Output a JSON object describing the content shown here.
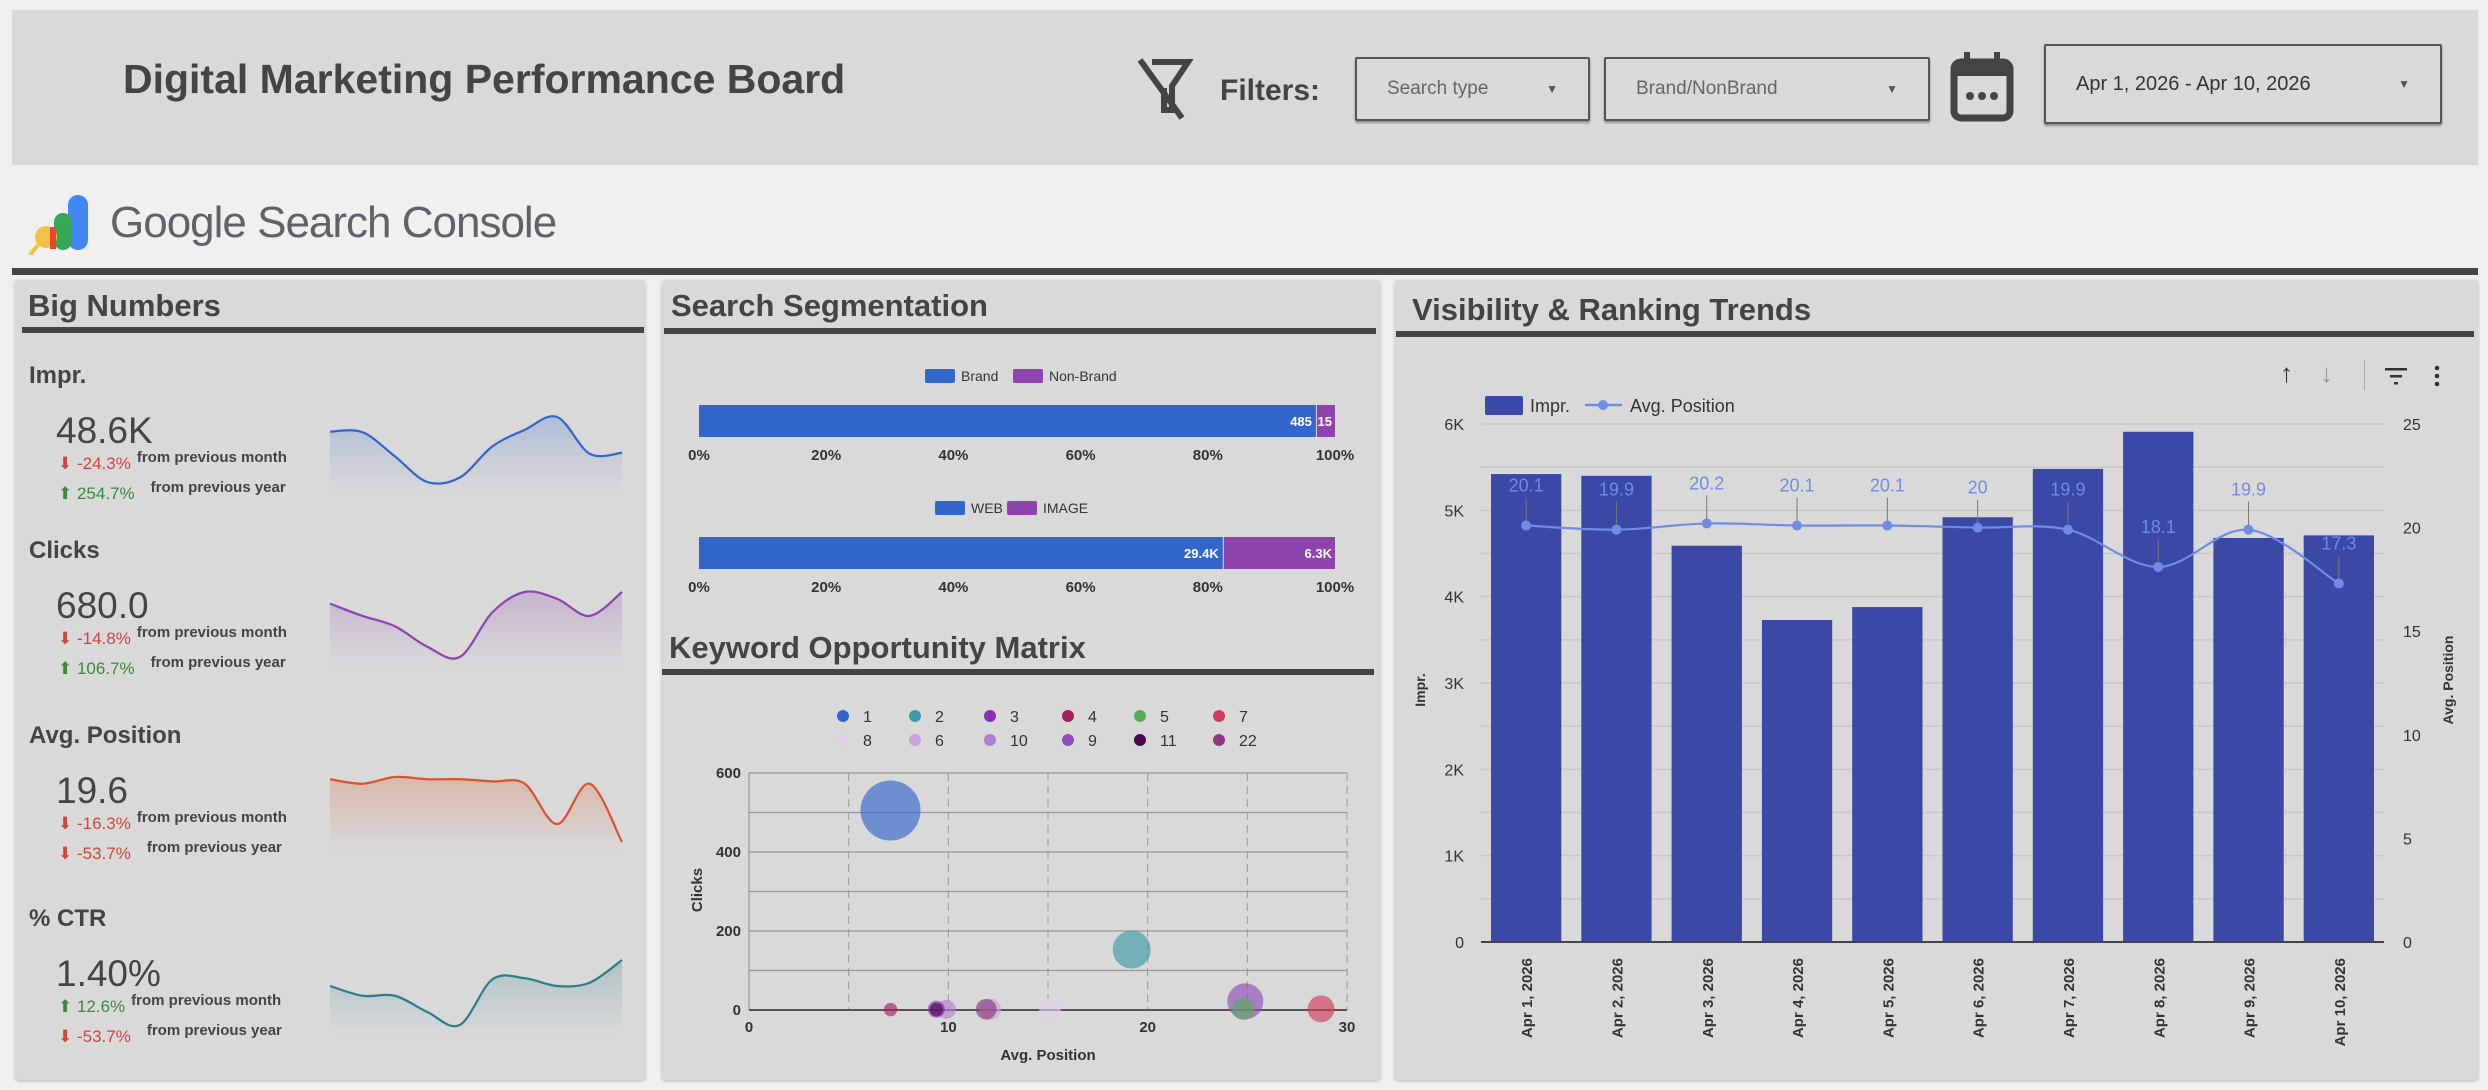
{
  "header": {
    "title": "Digital Marketing Performance Board",
    "filters_label": "Filters:",
    "search_type": {
      "placeholder": "Search type"
    },
    "brand_filter": {
      "placeholder": "Brand/NonBrand"
    },
    "date_range": {
      "value": "Apr 1, 2026 - Apr 10, 2026"
    }
  },
  "logo": {
    "text": "Google Search Console"
  },
  "big_numbers": {
    "title": "Big Numbers",
    "metrics": [
      {
        "label": "Impr.",
        "value": "48.6K",
        "mom": "-24.3%",
        "mom_dir": "down",
        "mom_text": "from previous month",
        "yoy": "254.7%",
        "yoy_dir": "up",
        "yoy_text": "from previous year",
        "color": "#3366cc",
        "spark": [
          5420,
          5400,
          4590,
          3730,
          3880,
          4920,
          5480,
          5910,
          4680,
          4710
        ]
      },
      {
        "label": "Clicks",
        "value": "680.0",
        "mom": "-14.8%",
        "mom_dir": "down",
        "mom_text": "from previous month",
        "yoy": "106.7%",
        "yoy_dir": "up",
        "yoy_text": "from previous year",
        "color": "#8e44ad",
        "spark": [
          78,
          60,
          45,
          15,
          0,
          65,
          95,
          85,
          60,
          95
        ]
      },
      {
        "label": "Avg. Position",
        "value": "19.6",
        "mom": "-16.3%",
        "mom_dir": "down",
        "mom_text": "from previous month",
        "yoy": "-53.7%",
        "yoy_dir": "down",
        "yoy_text": "from previous year",
        "color": "#d9542b",
        "spark": [
          20.1,
          19.9,
          20.2,
          20.1,
          20.1,
          20,
          19.9,
          18.1,
          19.9,
          17.3
        ]
      },
      {
        "label": "% CTR",
        "value": "1.40%",
        "mom": "12.6%",
        "mom_dir": "up",
        "mom_text": "from previous month",
        "yoy": "-53.7%",
        "yoy_dir": "down",
        "yoy_text": "from previous year",
        "color": "#2e7b8a",
        "spark": [
          60,
          45,
          45,
          20,
          0,
          70,
          72,
          60,
          65,
          100
        ]
      }
    ]
  },
  "segmentation": {
    "title": "Search Segmentation",
    "colors": [
      "#3366cc",
      "#8e44ad"
    ],
    "ticks": [
      "0%",
      "20%",
      "40%",
      "60%",
      "80%",
      "100%"
    ],
    "bars": [
      {
        "legend": [
          "Brand",
          "Non-Brand"
        ],
        "values": [
          485,
          15
        ],
        "labels": [
          "485",
          "15"
        ]
      },
      {
        "legend": [
          "WEB",
          "IMAGE"
        ],
        "values": [
          29400,
          6300
        ],
        "labels": [
          "29.4K",
          "6.3K"
        ]
      }
    ]
  },
  "chart_data": [
    {
      "type": "scatter",
      "title": "Keyword Opportunity Matrix",
      "xlabel": "Avg. Position",
      "ylabel": "Clicks",
      "xlim": [
        0,
        30
      ],
      "ylim": [
        0,
        600
      ],
      "xticks": [
        "0",
        "10",
        "20",
        "30"
      ],
      "yticks": [
        "0",
        "200",
        "400",
        "600"
      ],
      "grid": true,
      "legend_position": "top",
      "series": [
        {
          "name": "1",
          "color": "#3366cc",
          "x": 7.1,
          "y": 505,
          "size": 100
        },
        {
          "name": "2",
          "color": "#3d9aa6",
          "x": 19.2,
          "y": 153,
          "size": 40
        },
        {
          "name": "3",
          "color": "#8a2fb5",
          "x": 9.4,
          "y": 2,
          "size": 8
        },
        {
          "name": "4",
          "color": "#a5215a",
          "x": 7.1,
          "y": 1,
          "size": 5
        },
        {
          "name": "5",
          "color": "#5aaa5a",
          "x": 24.8,
          "y": 3,
          "size": 14
        },
        {
          "name": "7",
          "color": "#d03a5e",
          "x": 28.7,
          "y": 3,
          "size": 20
        },
        {
          "name": "8",
          "color": "#e0cfe8",
          "x": 15.1,
          "y": 2,
          "size": 13
        },
        {
          "name": "6",
          "color": "#c9a3d9",
          "x": 12.1,
          "y": 2,
          "size": 13
        },
        {
          "name": "10",
          "color": "#b07fcd",
          "x": 9.9,
          "y": 2,
          "size": 10
        },
        {
          "name": "9",
          "color": "#8e4fb8",
          "x": 24.9,
          "y": 22,
          "size": 36
        },
        {
          "name": "11",
          "color": "#4a0a4a",
          "x": 9.4,
          "y": 1,
          "size": 5
        },
        {
          "name": "22",
          "color": "#8e3a7e",
          "x": 11.9,
          "y": 2,
          "size": 12
        }
      ]
    },
    {
      "type": "bar",
      "title": "Visibility & Ranking Trends",
      "categories": [
        "Apr 1, 2026",
        "Apr 2, 2026",
        "Apr 3, 2026",
        "Apr 4, 2026",
        "Apr 5, 2026",
        "Apr 6, 2026",
        "Apr 7, 2026",
        "Apr 8, 2026",
        "Apr 9, 2026",
        "Apr 10, 2026"
      ],
      "series": [
        {
          "name": "Impr.",
          "type": "bar",
          "axis": "left",
          "color": "#3c48a6",
          "values": [
            5420,
            5400,
            4590,
            3730,
            3880,
            4920,
            5480,
            5910,
            4680,
            4710
          ]
        },
        {
          "name": "Avg. Position",
          "type": "line",
          "axis": "right",
          "color": "#6f8be6",
          "values": [
            20.1,
            19.9,
            20.2,
            20.1,
            20.1,
            20,
            19.9,
            18.1,
            19.9,
            17.3
          ]
        }
      ],
      "ylabel": "Impr.",
      "ylabel_right": "Avg. Position",
      "ylim": [
        0,
        6000
      ],
      "ylim_right": [
        0,
        25
      ],
      "yticks": [
        "0",
        "1K",
        "2K",
        "3K",
        "4K",
        "5K",
        "6K"
      ],
      "yticks_right": [
        "0",
        "5",
        "10",
        "15",
        "20",
        "25"
      ],
      "grid": true,
      "legend_position": "top-left"
    }
  ]
}
